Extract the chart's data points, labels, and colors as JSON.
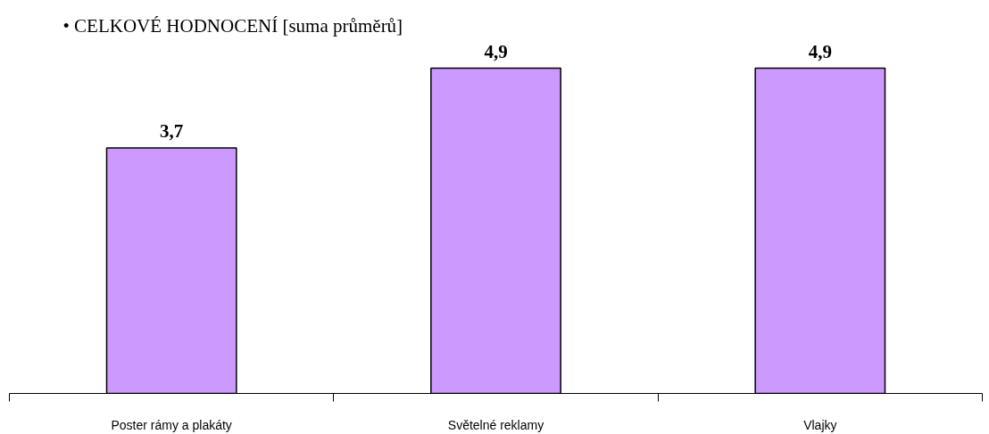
{
  "chart_data": {
    "type": "bar",
    "title": "• CELKOVÉ HODNOCENÍ [suma průměrů]",
    "categories": [
      "Poster rámy a plakáty",
      "Světelné reklamy",
      "Vlajky"
    ],
    "values": [
      3.7,
      4.9,
      4.9
    ],
    "color": "#cc99ff",
    "value_labels": [
      "3,7",
      "4,9",
      "4,9"
    ],
    "grid": false
  }
}
